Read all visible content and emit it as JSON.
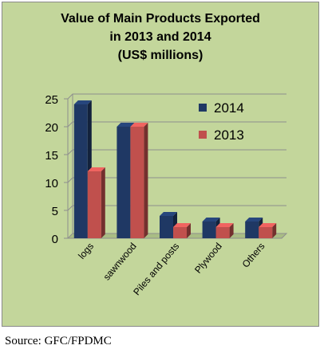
{
  "chart_data": {
    "type": "bar",
    "title_lines": [
      "Value of Main Products Exported",
      "in 2013 and 2014",
      "(US$ millions)"
    ],
    "xlabel": "",
    "ylabel": "",
    "categories": [
      "logs",
      "sawnwood",
      "Piles and posts",
      "Plywood",
      "Others"
    ],
    "series": [
      {
        "name": "2014",
        "color": "#1f3864",
        "values": [
          24,
          20,
          4,
          3,
          3
        ]
      },
      {
        "name": "2013",
        "color": "#c0504d",
        "values": [
          12,
          20,
          2,
          2,
          2
        ]
      }
    ],
    "y_ticks": [
      "0",
      "5",
      "10",
      "15",
      "20",
      "25"
    ],
    "ylim": [
      0,
      25
    ],
    "grid": true,
    "legend_position": "top-right",
    "background_color": "#c3d69b"
  },
  "source": "Source: GFC/FPDMC"
}
